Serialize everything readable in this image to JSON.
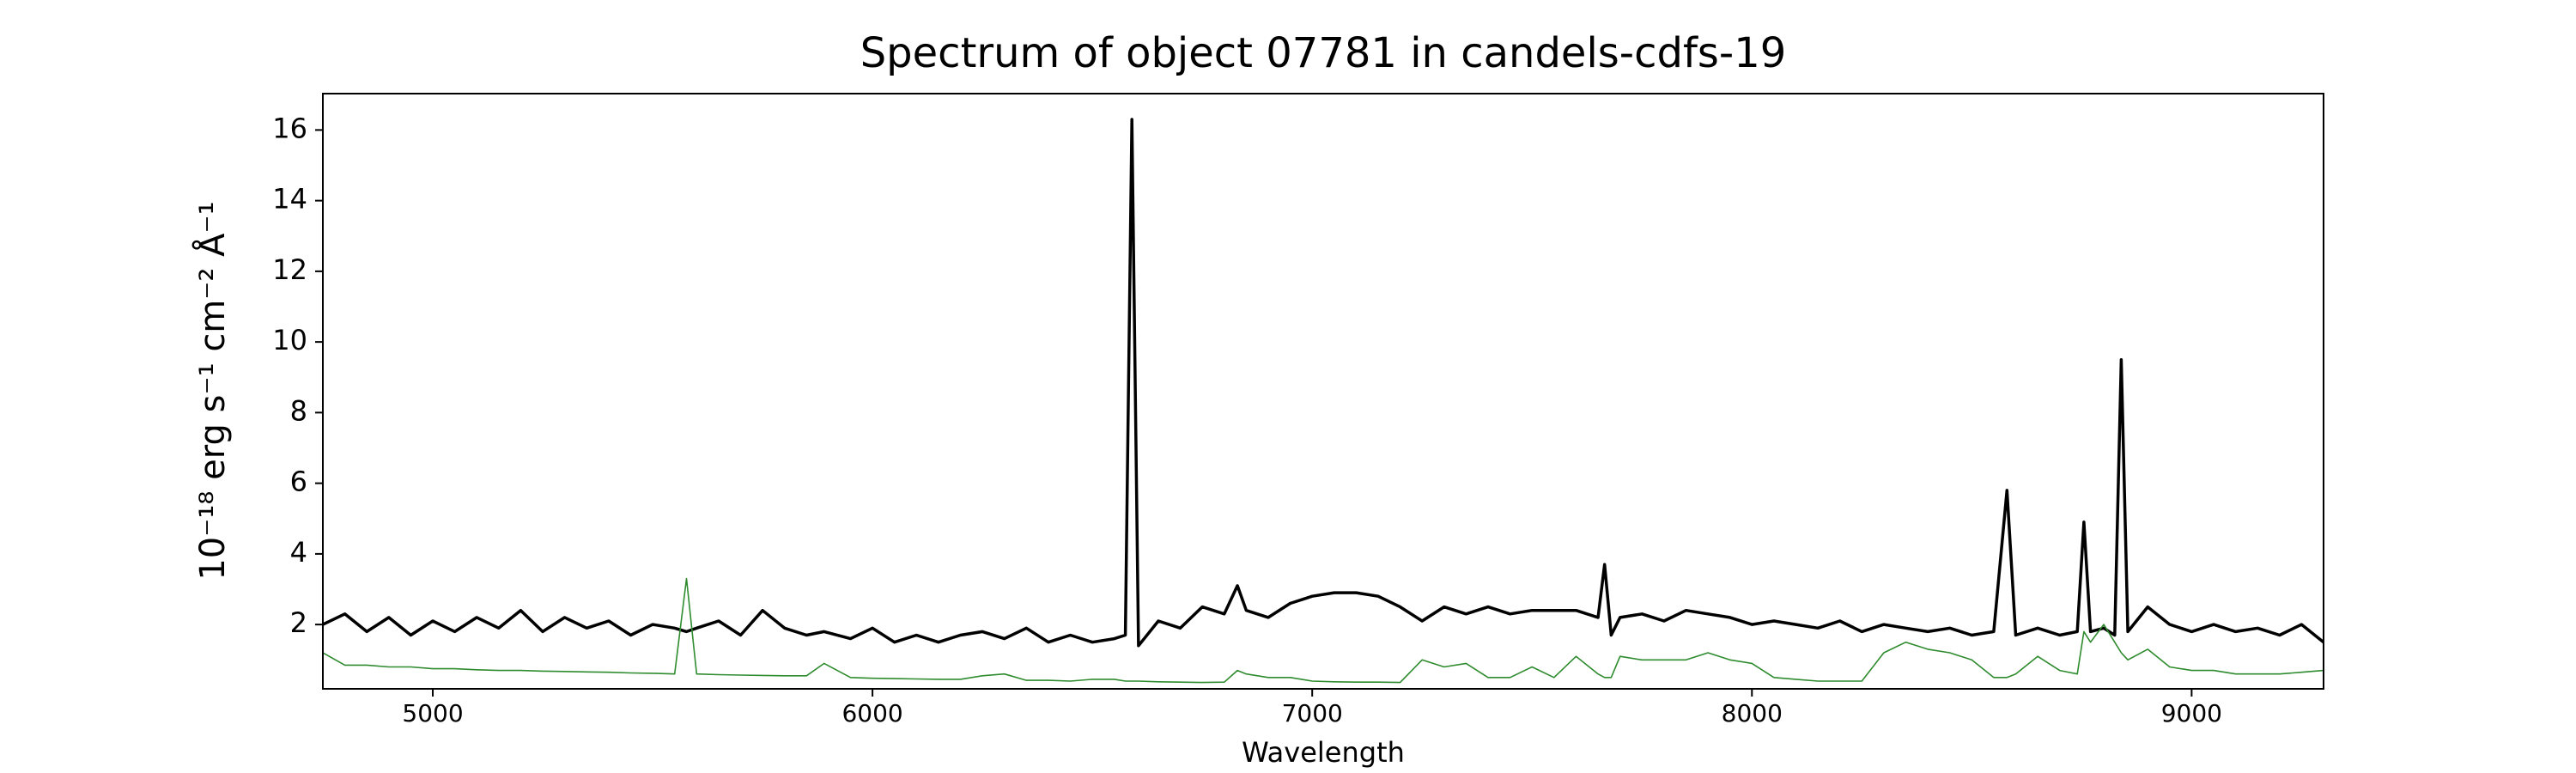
{
  "chart_data": {
    "type": "line",
    "title": "Spectrum of object 07781 in candels-cdfs-19",
    "x_label": "Wavelength",
    "y_label": "10⁻¹⁸ erg s⁻¹ cm⁻² Å⁻¹",
    "xlim": [
      4750,
      9300
    ],
    "ylim": [
      0.18,
      17.03
    ],
    "xticks": [
      5000,
      6000,
      7000,
      8000,
      9000
    ],
    "yticks": [
      2,
      4,
      6,
      8,
      10,
      12,
      14,
      16
    ],
    "x": [
      4750,
      4800,
      4850,
      4900,
      4950,
      5000,
      5050,
      5100,
      5150,
      5200,
      5250,
      5300,
      5350,
      5400,
      5450,
      5500,
      5550,
      5577,
      5600,
      5650,
      5700,
      5750,
      5800,
      5850,
      5890,
      5950,
      6000,
      6050,
      6100,
      6150,
      6200,
      6250,
      6300,
      6350,
      6400,
      6450,
      6500,
      6550,
      6575,
      6590,
      6605,
      6650,
      6700,
      6750,
      6800,
      6830,
      6850,
      6900,
      6950,
      7000,
      7050,
      7100,
      7150,
      7200,
      7250,
      7300,
      7350,
      7400,
      7450,
      7500,
      7550,
      7600,
      7650,
      7665,
      7680,
      7700,
      7750,
      7800,
      7850,
      7900,
      7950,
      8000,
      8050,
      8100,
      8150,
      8200,
      8250,
      8300,
      8350,
      8400,
      8450,
      8500,
      8550,
      8580,
      8600,
      8650,
      8700,
      8740,
      8755,
      8770,
      8800,
      8825,
      8840,
      8855,
      8900,
      8950,
      9000,
      9050,
      9100,
      9150,
      9200,
      9250,
      9300
    ],
    "series": [
      {
        "color": "#000000",
        "values": [
          2.0,
          2.3,
          1.8,
          2.2,
          1.7,
          2.1,
          1.8,
          2.2,
          1.9,
          2.4,
          1.8,
          2.2,
          1.9,
          2.1,
          1.7,
          2.0,
          1.9,
          1.8,
          1.9,
          2.1,
          1.7,
          2.4,
          1.9,
          1.7,
          1.8,
          1.6,
          1.9,
          1.5,
          1.7,
          1.5,
          1.7,
          1.8,
          1.6,
          1.9,
          1.5,
          1.7,
          1.5,
          1.6,
          1.7,
          16.3,
          1.4,
          2.1,
          1.9,
          2.5,
          2.3,
          3.1,
          2.4,
          2.2,
          2.6,
          2.8,
          2.9,
          2.9,
          2.8,
          2.5,
          2.1,
          2.5,
          2.3,
          2.5,
          2.3,
          2.4,
          2.4,
          2.4,
          2.2,
          3.7,
          1.7,
          2.2,
          2.3,
          2.1,
          2.4,
          2.3,
          2.2,
          2.0,
          2.1,
          2.0,
          1.9,
          2.1,
          1.8,
          2.0,
          1.9,
          1.8,
          1.9,
          1.7,
          1.8,
          5.8,
          1.7,
          1.9,
          1.7,
          1.8,
          4.9,
          1.8,
          1.9,
          1.7,
          9.5,
          1.8,
          2.5,
          2.0,
          1.8,
          2.0,
          1.8,
          1.9,
          1.7,
          2.0,
          1.5
        ]
      },
      {
        "color": "#2e8b2e",
        "values": [
          1.2,
          0.85,
          0.85,
          0.8,
          0.8,
          0.75,
          0.75,
          0.72,
          0.7,
          0.7,
          0.68,
          0.67,
          0.66,
          0.65,
          0.63,
          0.62,
          0.6,
          3.3,
          0.6,
          0.58,
          0.57,
          0.56,
          0.55,
          0.55,
          0.9,
          0.5,
          0.48,
          0.47,
          0.46,
          0.45,
          0.45,
          0.55,
          0.6,
          0.42,
          0.42,
          0.4,
          0.45,
          0.45,
          0.4,
          0.4,
          0.4,
          0.38,
          0.37,
          0.36,
          0.37,
          0.7,
          0.6,
          0.5,
          0.5,
          0.4,
          0.38,
          0.37,
          0.37,
          0.36,
          1.0,
          0.8,
          0.9,
          0.5,
          0.5,
          0.8,
          0.5,
          1.1,
          0.6,
          0.5,
          0.5,
          1.1,
          1.0,
          1.0,
          1.0,
          1.2,
          1.0,
          0.9,
          0.5,
          0.45,
          0.4,
          0.4,
          0.4,
          1.2,
          1.5,
          1.3,
          1.2,
          1.0,
          0.5,
          0.5,
          0.6,
          1.1,
          0.7,
          0.6,
          1.8,
          1.5,
          2.0,
          1.5,
          1.2,
          1.0,
          1.3,
          0.8,
          0.7,
          0.7,
          0.6,
          0.6,
          0.6,
          0.65,
          0.7
        ]
      }
    ]
  }
}
